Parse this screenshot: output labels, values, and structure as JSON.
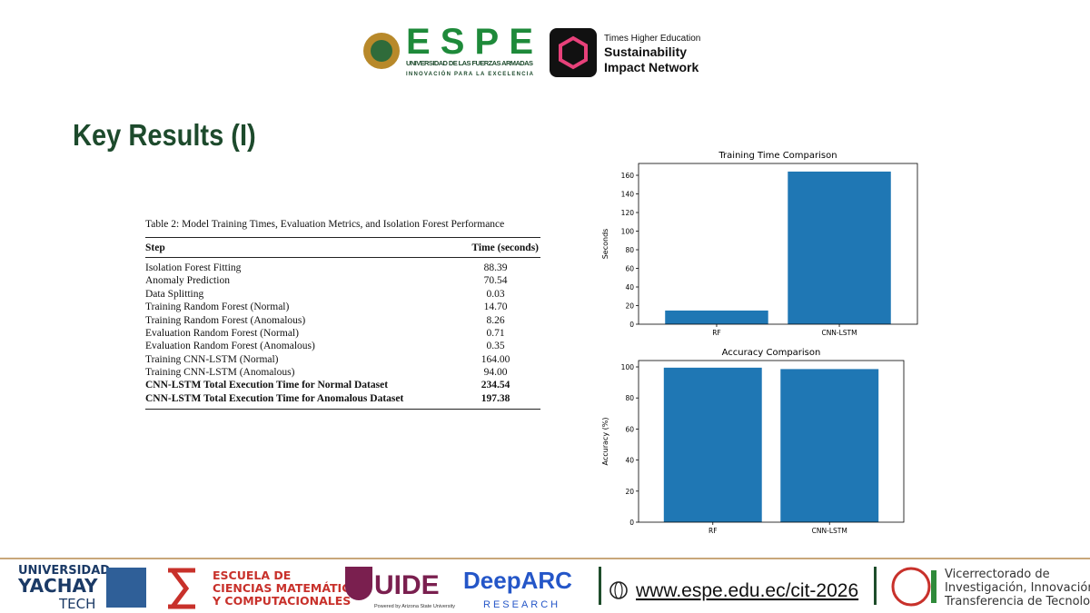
{
  "header": {
    "espe": "ESPE",
    "espe_name": "UNIVERSIDAD DE LAS FUERZAS ARMADAS",
    "espe_motto": "INNOVACIÓN PARA LA EXCELENCIA",
    "the_small": "Times Higher Education",
    "the_line1": "Sustainability",
    "the_line2": "Impact Network"
  },
  "title": "Key Results (I)",
  "table": {
    "caption": "Table 2: Model Training Times, Evaluation Metrics, and Isolation Forest Performance",
    "columns": [
      "Step",
      "Time (seconds)"
    ],
    "rows": [
      [
        "Isolation Forest Fitting",
        "88.39"
      ],
      [
        "Anomaly Prediction",
        "70.54"
      ],
      [
        "Data Splitting",
        "0.03"
      ],
      [
        "Training Random Forest (Normal)",
        "14.70"
      ],
      [
        "Training Random Forest (Anomalous)",
        "8.26"
      ],
      [
        "Evaluation Random Forest (Normal)",
        "0.71"
      ],
      [
        "Evaluation Random Forest (Anomalous)",
        "0.35"
      ],
      [
        "Training CNN-LSTM (Normal)",
        "164.00"
      ],
      [
        "Training CNN-LSTM (Anomalous)",
        "94.00"
      ],
      [
        "CNN-LSTM Total Execution Time for Normal Dataset",
        "234.54"
      ],
      [
        "CNN-LSTM Total Execution Time for Anomalous Dataset",
        "197.38"
      ]
    ]
  },
  "chart_data": [
    {
      "type": "bar",
      "title": "Training Time Comparison",
      "ylabel": "Seconds",
      "categories": [
        "RF",
        "CNN-LSTM"
      ],
      "values": [
        14.7,
        164
      ],
      "color": "#1f77b4",
      "ylim": [
        0,
        172.7
      ],
      "yticks": [
        0,
        20,
        40,
        60,
        80,
        100,
        120,
        140,
        160
      ]
    },
    {
      "type": "bar",
      "title": "Accuracy Comparison",
      "ylabel": "Accuracy (%)",
      "categories": [
        "RF",
        "CNN-LSTM"
      ],
      "values": [
        99.5,
        98.6
      ],
      "color": "#1f77b4",
      "ylim": [
        0,
        104.1
      ],
      "yticks": [
        0,
        20,
        40,
        60,
        80,
        100
      ]
    }
  ],
  "footer": {
    "yachay": [
      "UNIVERSIDAD",
      "YACHAY",
      "TECH"
    ],
    "escuela": [
      "ESCUELA DE",
      "CIENCIAS MATEMÁTICAS",
      "Y COMPUTACIONALES"
    ],
    "uide": "UIDE",
    "uide_sub": "Powered by Arizona State University",
    "deeparc": "DeepARC",
    "deeparc_sub": "RESEARCH",
    "url": "www.espe.edu.ec/cit-2026",
    "vice": [
      "Vicerrectorado de",
      "Investigación, Innovación y",
      "Transferencia de Tecnología"
    ]
  }
}
